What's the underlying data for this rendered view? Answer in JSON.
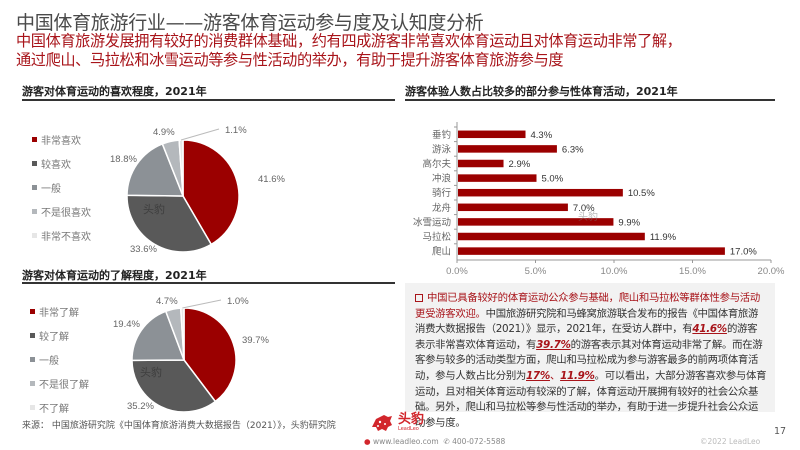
{
  "header": {
    "title": "中国体育旅游行业——游客体育运动参与度及认知度分析",
    "subtitle_line1": "中国体育旅游发展拥有较好的消费群体基础，约有四成游客非常喜欢体育运动且对体育运动非常了解，",
    "subtitle_line2": "通过爬山、马拉松和冰雪运动等参与性活动的举办，有助于提升游客体育旅游参与度"
  },
  "colors": {
    "accent_red": "#a8141a",
    "bar_red": "#9b0000",
    "pie": [
      "#9b0000",
      "#595959",
      "#8c9196",
      "#b4b8bc",
      "#e6e6e6"
    ]
  },
  "chart_data": [
    {
      "type": "pie",
      "title": "游客对体育运动的喜欢程度，2021年",
      "categories": [
        "非常喜欢",
        "较喜欢",
        "一般",
        "不是很喜欢",
        "非常不喜欢"
      ],
      "values": [
        41.6,
        33.6,
        18.8,
        4.9,
        1.1
      ],
      "labels": [
        "41.6%",
        "33.6%",
        "18.8%",
        "4.9%",
        "1.1%"
      ],
      "legend_position": "left"
    },
    {
      "type": "pie",
      "title": "游客对体育运动的了解程度，2021年",
      "categories": [
        "非常了解",
        "较了解",
        "一般",
        "不是很了解",
        "不了解"
      ],
      "values": [
        39.7,
        35.2,
        19.4,
        4.7,
        1.0
      ],
      "labels": [
        "39.7%",
        "35.2%",
        "19.4%",
        "4.7%",
        "1.0%"
      ],
      "legend_position": "left"
    },
    {
      "type": "bar",
      "orientation": "horizontal",
      "title": "游客体验人数占比较多的部分参与性体育活动，2021年",
      "categories": [
        "垂钓",
        "游泳",
        "高尔夫",
        "冲浪",
        "骑行",
        "龙舟",
        "冰雪运动",
        "马拉松",
        "爬山"
      ],
      "values": [
        4.3,
        6.3,
        2.9,
        5.0,
        10.5,
        7.0,
        9.9,
        11.9,
        17.0
      ],
      "labels": [
        "4.3%",
        "6.3%",
        "2.9%",
        "5.0%",
        "10.5%",
        "7.0%",
        "9.9%",
        "11.9%",
        "17.0%"
      ],
      "xlim": [
        0,
        20
      ],
      "xticks": [
        "0.0%",
        "5.0%",
        "10.0%",
        "15.0%",
        "20.0%"
      ],
      "grid": false
    }
  ],
  "summary": {
    "lead": "中国已具备较好的体育运动公众参与基础，爬山和马拉松等群体性参与活动更受游客欢迎。",
    "p1": "中国旅游研究院和马蜂窝旅游联合发布的报告《中国体育旅游消费大数据报告（2021）》显示，2021年，在受访人群中，有",
    "n1": "41.6%",
    "p2": "的游客表示非常喜欢体育运动，有",
    "n2": "39.7%",
    "p3": "的游客表示其对体育运动非常了解。而在游客参与较多的活动类型方面，爬山和马拉松成为参与游客最多的前两项体育活动，参与人数占比分别为",
    "n3": "17%",
    "sep": "、",
    "n4": "11.9%",
    "p4": "。可以看出，大部分游客喜欢参与体育运动，且对相关体育运动有较深的了解，体育运动开展拥有较好的社会公众基础。另外，爬山和马拉松等参与性活动的举办，有助于进一步提升社会公众运动参与度。"
  },
  "watermark": "头豹",
  "footer": {
    "source": "来源：  中国旅游研究院《中国体育旅游消费大数据报告（2021）》，头豹研究院",
    "logo_name": "头豹",
    "logo_sub": "LeadLeo",
    "website": "www.leadleo.com",
    "phone": "400-072-5588",
    "copyright": "©2022 LeadLeo",
    "page_number": "17"
  }
}
